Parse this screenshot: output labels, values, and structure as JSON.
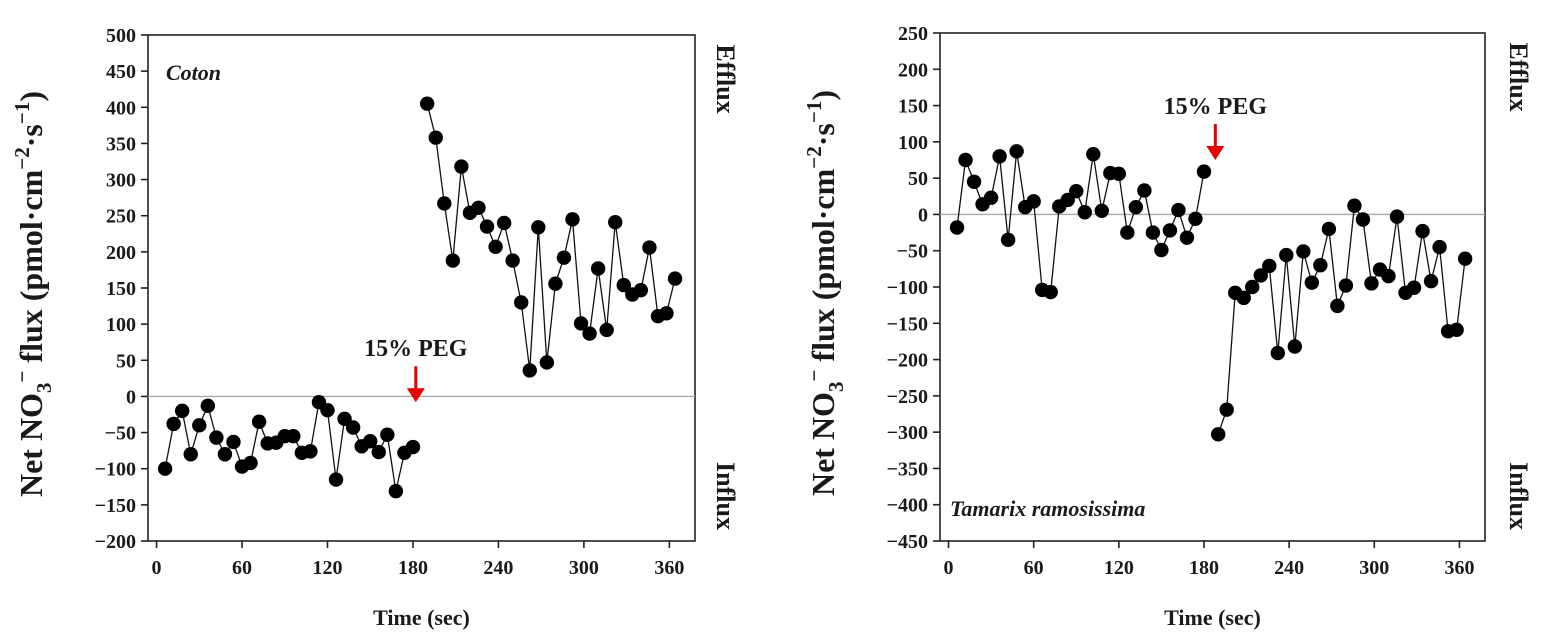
{
  "chart_data": [
    {
      "type": "line",
      "title": "Coton",
      "xlabel": "Time (sec)",
      "ylabel": {
        "main": "Net NO",
        "sub": "3",
        "sup": "−",
        "mid": " flux  (pmol·cm",
        "sup2": "−2",
        "mid2": "·s",
        "sup3": "−1",
        "end": ")"
      },
      "right_top": "Efflux",
      "right_bottom": "Influx",
      "annotation": "15% PEG",
      "annotation_x": 182,
      "xlim": [
        -6,
        378
      ],
      "ylim": [
        -200,
        500
      ],
      "xticks": [
        0,
        60,
        120,
        180,
        240,
        300,
        360
      ],
      "yticks": [
        -200,
        -150,
        -100,
        -50,
        0,
        50,
        100,
        150,
        200,
        250,
        300,
        350,
        400,
        450,
        500
      ],
      "zero_line": true,
      "series": [
        {
          "x": [
            6,
            12,
            18,
            24,
            30,
            36,
            42,
            48,
            54,
            60,
            66,
            72,
            78,
            84,
            90,
            96,
            102,
            108,
            114,
            120,
            126,
            132,
            138,
            144,
            150,
            156,
            162,
            168,
            174,
            180
          ],
          "y": [
            -100,
            -38,
            -20,
            -80,
            -40,
            -13,
            -57,
            -80,
            -63,
            -97,
            -92,
            -35,
            -65,
            -64,
            -55,
            -55,
            -78,
            -76,
            -8,
            -19,
            -115,
            -31,
            -43,
            -69,
            -62,
            -77,
            -53,
            -131,
            -78,
            -70
          ]
        },
        {
          "x": [
            190,
            196,
            202,
            208,
            214,
            220,
            226,
            232,
            238,
            244,
            250,
            256,
            262,
            268,
            274,
            280,
            286,
            292,
            298,
            304,
            310,
            316,
            322,
            328,
            334,
            340,
            346,
            352,
            358,
            364
          ],
          "y": [
            405,
            358,
            267,
            188,
            318,
            254,
            261,
            235,
            207,
            240,
            188,
            130,
            36,
            234,
            47,
            156,
            192,
            245,
            101,
            87,
            177,
            92,
            241,
            154,
            141,
            147,
            206,
            111,
            115,
            163
          ]
        }
      ]
    },
    {
      "type": "line",
      "title": "Tamarix ramosissima",
      "xlabel": "Time (sec)",
      "ylabel": {
        "main": "Net NO",
        "sub": "3",
        "sup": "−",
        "mid": " flux  (pmol·cm",
        "sup2": "−2",
        "mid2": "·s",
        "sup3": "−1",
        "end": ")"
      },
      "right_top": "Efflux",
      "right_bottom": "Influx",
      "annotation": "15% PEG",
      "annotation_x": 188,
      "xlim": [
        -6,
        378
      ],
      "ylim": [
        -450,
        250
      ],
      "xticks": [
        0,
        60,
        120,
        180,
        240,
        300,
        360
      ],
      "yticks": [
        -450,
        -400,
        -350,
        -300,
        -250,
        -200,
        -150,
        -100,
        -50,
        0,
        50,
        100,
        150,
        200,
        250
      ],
      "zero_line": true,
      "series": [
        {
          "x": [
            6,
            12,
            18,
            24,
            30,
            36,
            42,
            48,
            54,
            60,
            66,
            72,
            78,
            84,
            90,
            96,
            102,
            108,
            114,
            120,
            126,
            132,
            138,
            144,
            150,
            156,
            162,
            168,
            174,
            180
          ],
          "y": [
            -18,
            75,
            45,
            14,
            23,
            80,
            -35,
            87,
            10,
            18,
            -104,
            -107,
            11,
            20,
            32,
            3,
            83,
            5,
            57,
            56,
            -25,
            10,
            33,
            -25,
            -49,
            -22,
            6,
            -32,
            -6,
            59
          ]
        },
        {
          "x": [
            190,
            196,
            202,
            208,
            214,
            220,
            226,
            232,
            238,
            244,
            250,
            256,
            262,
            268,
            274,
            280,
            286,
            292,
            298,
            304,
            310,
            316,
            322,
            328,
            334,
            340,
            346,
            352,
            358,
            364
          ],
          "y": [
            -303,
            -269,
            -108,
            -115,
            -100,
            -84,
            -71,
            -191,
            -56,
            -182,
            -51,
            -94,
            -70,
            -20,
            -126,
            -98,
            12,
            -7,
            -95,
            -76,
            -85,
            -3,
            -108,
            -101,
            -23,
            -92,
            -45,
            -161,
            -159,
            -61
          ]
        }
      ]
    }
  ]
}
